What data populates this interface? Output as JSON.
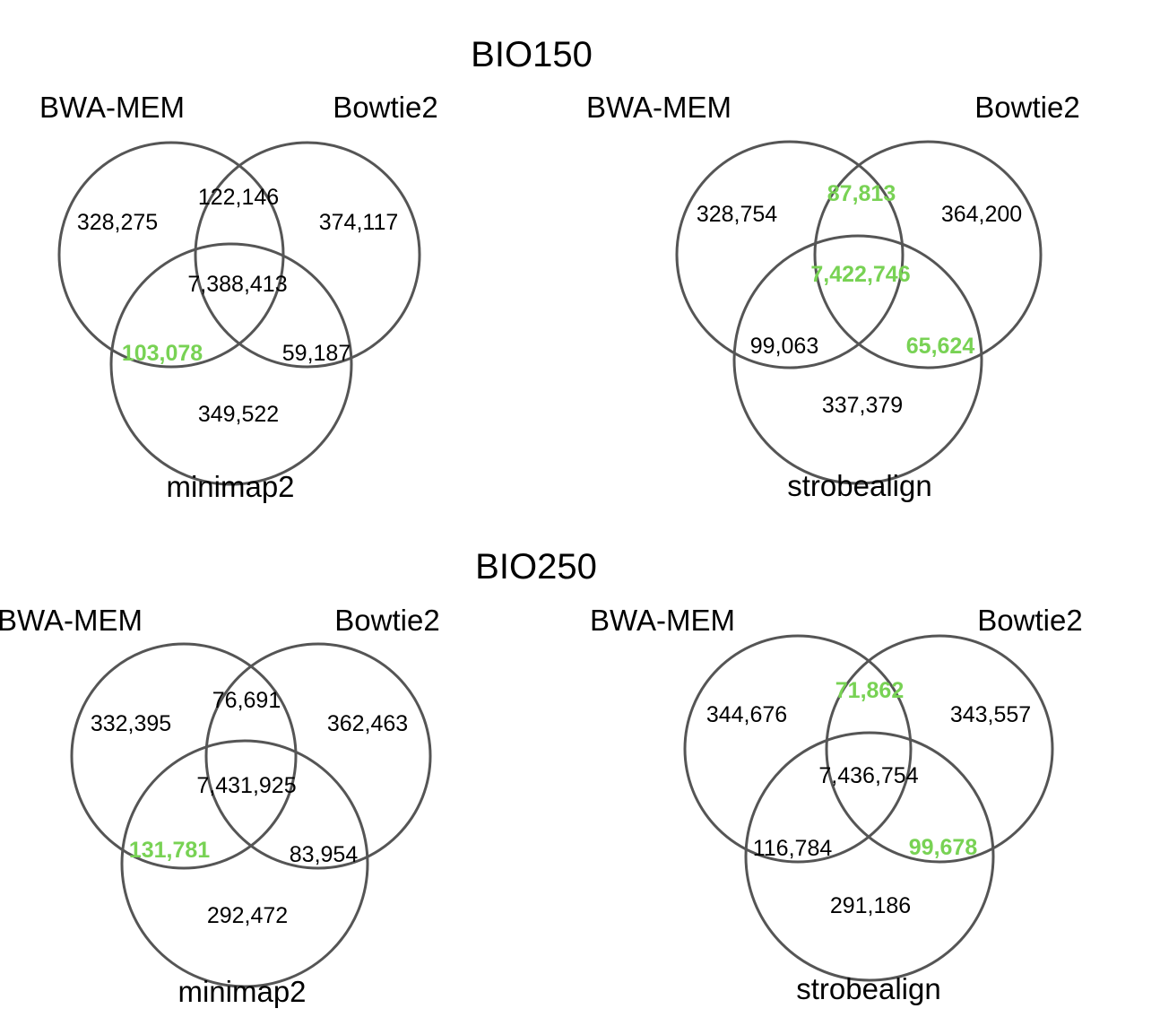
{
  "highlight_color": "#78d254",
  "circle_color": "#555555",
  "sections": [
    {
      "title": "BIO150",
      "diagrams": [
        {
          "labels": {
            "a": "BWA-MEM",
            "b": "Bowtie2",
            "c": "minimap2"
          },
          "regions": {
            "a_only": {
              "text": "328,275",
              "highlight": false
            },
            "b_only": {
              "text": "374,117",
              "highlight": false
            },
            "ab": {
              "text": "122,146",
              "highlight": false
            },
            "abc": {
              "text": "7,388,413",
              "highlight": false
            },
            "ac": {
              "text": "103,078",
              "highlight": true
            },
            "bc": {
              "text": "59,187",
              "highlight": false
            },
            "c_only": {
              "text": "349,522",
              "highlight": false
            }
          }
        },
        {
          "labels": {
            "a": "BWA-MEM",
            "b": "Bowtie2",
            "c": "strobealign"
          },
          "regions": {
            "a_only": {
              "text": "328,754",
              "highlight": false
            },
            "b_only": {
              "text": "364,200",
              "highlight": false
            },
            "ab": {
              "text": "87,813",
              "highlight": true
            },
            "abc": {
              "text": "7,422,746",
              "highlight": true
            },
            "ac": {
              "text": "99,063",
              "highlight": false
            },
            "bc": {
              "text": "65,624",
              "highlight": true
            },
            "c_only": {
              "text": "337,379",
              "highlight": false
            }
          }
        }
      ]
    },
    {
      "title": "BIO250",
      "diagrams": [
        {
          "labels": {
            "a": "BWA-MEM",
            "b": "Bowtie2",
            "c": "minimap2"
          },
          "regions": {
            "a_only": {
              "text": "332,395",
              "highlight": false
            },
            "b_only": {
              "text": "362,463",
              "highlight": false
            },
            "ab": {
              "text": "76,691",
              "highlight": false
            },
            "abc": {
              "text": "7,431,925",
              "highlight": false
            },
            "ac": {
              "text": "131,781",
              "highlight": true
            },
            "bc": {
              "text": "83,954",
              "highlight": false
            },
            "c_only": {
              "text": "292,472",
              "highlight": false
            }
          }
        },
        {
          "labels": {
            "a": "BWA-MEM",
            "b": "Bowtie2",
            "c": "strobealign"
          },
          "regions": {
            "a_only": {
              "text": "344,676",
              "highlight": false
            },
            "b_only": {
              "text": "343,557",
              "highlight": false
            },
            "ab": {
              "text": "71,862",
              "highlight": true
            },
            "abc": {
              "text": "7,436,754",
              "highlight": false
            },
            "ac": {
              "text": "116,784",
              "highlight": false
            },
            "bc": {
              "text": "99,678",
              "highlight": true
            },
            "c_only": {
              "text": "291,186",
              "highlight": false
            }
          }
        }
      ]
    }
  ]
}
